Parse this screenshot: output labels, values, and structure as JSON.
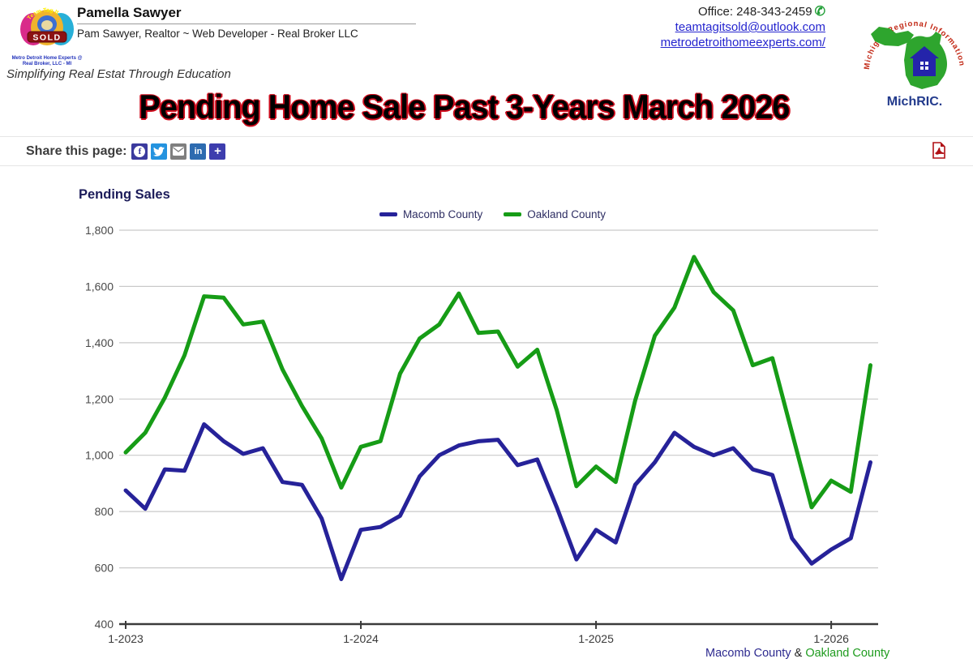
{
  "header": {
    "logo_badge": {
      "arc_top": "Team Tag It",
      "sold": "SOLD",
      "caption_line1": "Metro Detroit Home Experts @",
      "caption_line2": "Real Broker, LLC - MI"
    },
    "name": "Pamella Sawyer",
    "subtitle": "Pam Sawyer, Realtor ~ Web Developer - Real Broker LLC",
    "tagline": "Simplifying Real Estat Through Education",
    "contact": {
      "office": "Office: 248-343-2459",
      "email": "teamtagitsold@outlook.com",
      "website": "metrodetroithomeexperts.com/"
    },
    "michric": {
      "arc_text": "Michigan Regional Information Center",
      "wordmark": "MichRIC."
    }
  },
  "title": "Pending Home Sale Past 3-Years March 2026",
  "share_bar": {
    "label": "Share this page:",
    "icons": [
      {
        "name": "facebook",
        "color": "#3b3a9e"
      },
      {
        "name": "twitter",
        "color": "#2493df"
      },
      {
        "name": "email",
        "color": "#7f7f7f"
      },
      {
        "name": "linkedin",
        "color": "#2d6bb0"
      },
      {
        "name": "share-more",
        "color": "#3d3dae"
      }
    ]
  },
  "chart_data": {
    "type": "line",
    "title": "Pending Sales",
    "ylim": [
      400,
      1800
    ],
    "ytick_step": 200,
    "grid": "horizontal",
    "legend_position": "top-center",
    "x_tick_labels": [
      "1-2023",
      "1-2024",
      "1-2025",
      "1-2026"
    ],
    "months": [
      "1-2023",
      "2-2023",
      "3-2023",
      "4-2023",
      "5-2023",
      "6-2023",
      "7-2023",
      "8-2023",
      "9-2023",
      "10-2023",
      "11-2023",
      "12-2023",
      "1-2024",
      "2-2024",
      "3-2024",
      "4-2024",
      "5-2024",
      "6-2024",
      "7-2024",
      "8-2024",
      "9-2024",
      "10-2024",
      "11-2024",
      "12-2024",
      "1-2025",
      "2-2025",
      "3-2025",
      "4-2025",
      "5-2025",
      "6-2025",
      "7-2025",
      "8-2025",
      "9-2025",
      "10-2025",
      "11-2025",
      "12-2025",
      "1-2026",
      "2-2026",
      "3-2026"
    ],
    "series": [
      {
        "name": "Macomb County",
        "color": "#262299",
        "values": [
          875,
          810,
          950,
          945,
          1110,
          1050,
          1005,
          1025,
          905,
          895,
          775,
          560,
          735,
          745,
          785,
          925,
          1000,
          1035,
          1050,
          1055,
          965,
          985,
          815,
          630,
          735,
          690,
          895,
          975,
          1080,
          1030,
          1000,
          1025,
          950,
          930,
          705,
          615,
          665,
          705,
          975
        ]
      },
      {
        "name": "Oakland County",
        "color": "#169c16",
        "values": [
          1010,
          1080,
          1205,
          1355,
          1565,
          1560,
          1465,
          1475,
          1305,
          1175,
          1060,
          885,
          1030,
          1050,
          1290,
          1415,
          1465,
          1575,
          1435,
          1440,
          1315,
          1375,
          1160,
          890,
          960,
          905,
          1195,
          1425,
          1525,
          1705,
          1580,
          1515,
          1320,
          1345,
          1080,
          815,
          910,
          870,
          1320
        ]
      }
    ],
    "footer_caption": {
      "part1": "Macomb County",
      "separator": " & ",
      "part2": "Oakland County"
    }
  }
}
